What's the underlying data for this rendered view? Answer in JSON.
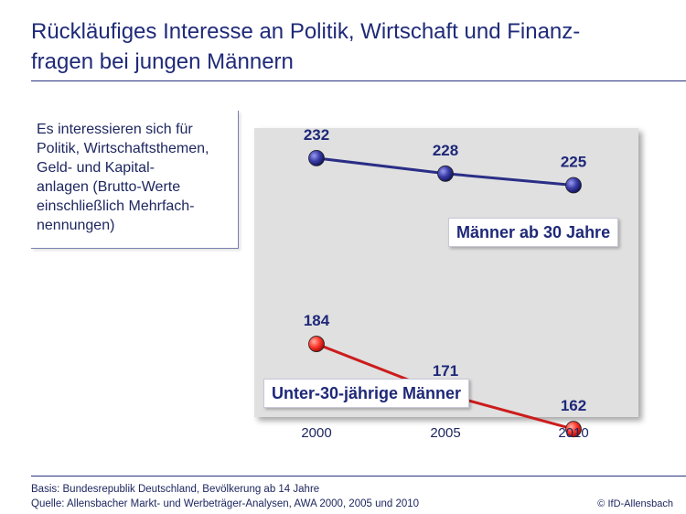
{
  "header": {
    "title_line1": "Rückläufiges Interesse an Politik, Wirtschaft und Finanz-",
    "title_line2": "fragen bei jungen Männern"
  },
  "description": {
    "lines": [
      "Es interessieren sich für",
      "Politik, Wirtschaftsthemen,",
      "Geld- und Kapital-",
      "anlagen (Brutto-Werte",
      "einschließlich Mehrfach-",
      "nennungen)"
    ]
  },
  "chart_data": {
    "type": "line",
    "title": "Rückläufiges Interesse an Politik, Wirtschaft und Finanzfragen bei jungen Männern",
    "x": [
      "2000",
      "2005",
      "2010"
    ],
    "series": [
      {
        "name": "Männer ab 30 Jahre",
        "values": [
          232,
          228,
          225
        ],
        "color": "#2a2e86"
      },
      {
        "name": "Unter-30-jährige Männer",
        "values": [
          184,
          171,
          162
        ],
        "color": "#cc1c1c"
      }
    ],
    "xlabel": "",
    "ylabel": "",
    "grid": false,
    "ylim": [
      150,
      240
    ]
  },
  "footer": {
    "basis": "Basis: Bundesrepublik Deutschland, Bevölkerung ab 14 Jahre",
    "source": "Quelle: Allensbacher Markt- und Werbeträger-Analysen, AWA 2000, 2005 und 2010",
    "copyright": "© IfD-Allensbach"
  }
}
